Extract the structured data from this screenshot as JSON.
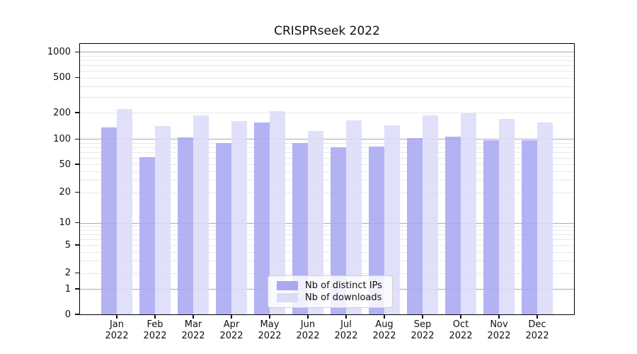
{
  "title": "CRISPRseek 2022",
  "chart_data": {
    "type": "bar",
    "title": "CRISPRseek 2022",
    "xlabel": "",
    "ylabel": "",
    "year": "2022",
    "months": [
      "Jan",
      "Feb",
      "Mar",
      "Apr",
      "May",
      "Jun",
      "Jul",
      "Aug",
      "Sep",
      "Oct",
      "Nov",
      "Dec"
    ],
    "categories": [
      "Jan 2022",
      "Feb 2022",
      "Mar 2022",
      "Apr 2022",
      "May 2022",
      "Jun 2022",
      "Jul 2022",
      "Aug 2022",
      "Sep 2022",
      "Oct 2022",
      "Nov 2022",
      "Dec 2022"
    ],
    "series": [
      {
        "name": "Nb of distinct IPs",
        "color": "#a9a9f1",
        "values": [
          135,
          61,
          104,
          90,
          153,
          90,
          79,
          81,
          103,
          106,
          96,
          97
        ]
      },
      {
        "name": "Nb of downloads",
        "color": "#dcdcf9",
        "values": [
          220,
          140,
          186,
          161,
          208,
          124,
          162,
          142,
          187,
          196,
          169,
          155
        ]
      }
    ],
    "y_scale": "log-like (symlog/asinh), linear segment between 0 and 1",
    "ylim": [
      0,
      1250
    ],
    "y_tick_values": [
      1000,
      500,
      200,
      100,
      50,
      20,
      10,
      5,
      2,
      1,
      0
    ],
    "major_gridline_values": [
      1,
      10,
      100,
      1000
    ],
    "minor_gridline_values": [
      2,
      3,
      4,
      5,
      6,
      7,
      8,
      9,
      20,
      30,
      40,
      50,
      60,
      70,
      80,
      90,
      200,
      300,
      400,
      500,
      600,
      700,
      800,
      900
    ],
    "scale_anchors": [
      [
        0,
        444
      ],
      [
        1,
        408
      ],
      [
        2,
        385.5
      ],
      [
        5,
        346
      ],
      [
        10,
        314.5
      ],
      [
        20,
        271.5
      ],
      [
        50,
        232
      ],
      [
        100,
        196.3
      ],
      [
        200,
        159
      ],
      [
        500,
        109.5
      ],
      [
        1000,
        73.3
      ]
    ],
    "grid": "on",
    "legend_position": "bottom-center"
  },
  "colors": {
    "background": "#ffffff",
    "major_grid": "#ababab",
    "minor_grid": "#e9e9e9",
    "axis": "#000000",
    "text": "#111111"
  }
}
